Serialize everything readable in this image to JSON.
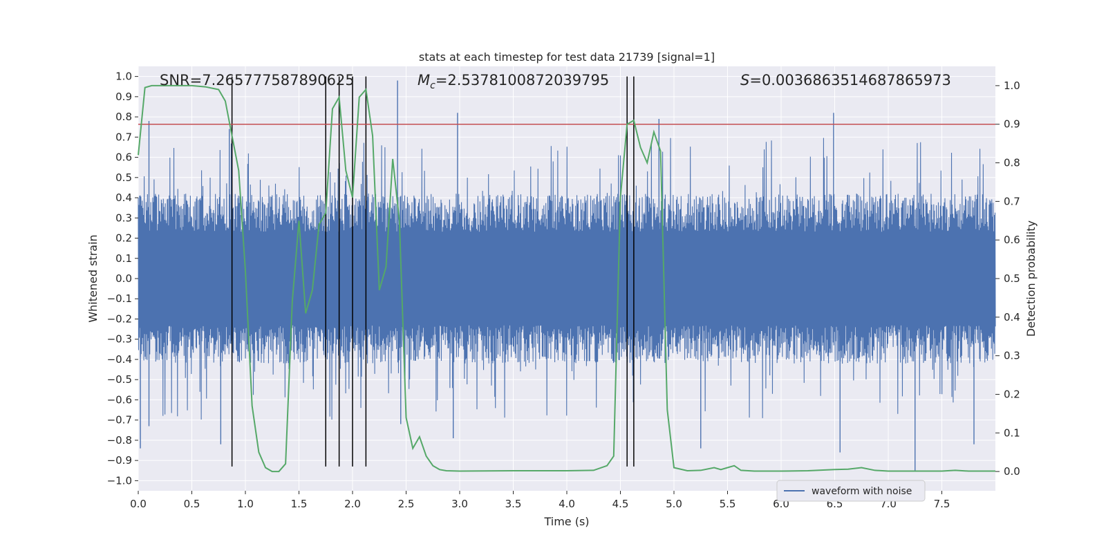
{
  "chart_data": {
    "type": "line",
    "title": "stats at each timestep for test data 21739 [signal=1]",
    "xlabel": "Time (s)",
    "ylabel": "Whitened strain",
    "ylabel_right": "Detection probability",
    "xlim": [
      0.0,
      8.0
    ],
    "ylim": [
      -1.05,
      1.05
    ],
    "ylim_right": [
      -0.05,
      1.05
    ],
    "xticks": [
      "0.0",
      "0.5",
      "1.0",
      "1.5",
      "2.0",
      "2.5",
      "3.0",
      "3.5",
      "4.0",
      "4.5",
      "5.0",
      "5.5",
      "6.0",
      "6.5",
      "7.0",
      "7.5"
    ],
    "yticks_left": [
      "−1.0",
      "−0.9",
      "−0.8",
      "−0.7",
      "−0.6",
      "−0.5",
      "−0.4",
      "−0.3",
      "−0.2",
      "−0.1",
      "0.0",
      "0.1",
      "0.2",
      "0.3",
      "0.4",
      "0.5",
      "0.6",
      "0.7",
      "0.8",
      "0.9",
      "1.0"
    ],
    "yticks_right": [
      "0.0",
      "0.1",
      "0.2",
      "0.3",
      "0.4",
      "0.5",
      "0.6",
      "0.7",
      "0.8",
      "0.9",
      "1.0"
    ],
    "annotations": {
      "snr": "SNR=7.265777587890625",
      "mc_symbol": "M",
      "mc_sub": "c",
      "mc_value": "=2.5378100872039795",
      "s_symbol": "S",
      "s_value": "=0.0036863514687865973"
    },
    "legend": {
      "label": "waveform with noise",
      "position": "bottom-right"
    },
    "threshold": {
      "value": 0.9,
      "axis": "right",
      "color": "#c44e52"
    },
    "vertical_markers": [
      0.875,
      1.75,
      1.875,
      2.0,
      2.125,
      4.5625,
      4.625
    ],
    "waveform": {
      "name": "waveform with noise",
      "color": "#4c72b0",
      "x_range": [
        0.0,
        8.0
      ],
      "band_upper_approx": 0.42,
      "band_lower_approx": -0.42,
      "peaks": [
        {
          "x": 0.02,
          "y": -0.84
        },
        {
          "x": 0.1,
          "y": 0.78
        },
        {
          "x": 0.1,
          "y": -0.73
        },
        {
          "x": 0.85,
          "y": 0.74
        },
        {
          "x": 0.77,
          "y": -0.82
        },
        {
          "x": 2.42,
          "y": 0.98
        },
        {
          "x": 2.45,
          "y": -0.72
        },
        {
          "x": 2.98,
          "y": 0.82
        },
        {
          "x": 2.94,
          "y": -0.79
        },
        {
          "x": 4.86,
          "y": 0.79
        },
        {
          "x": 6.49,
          "y": 0.82
        },
        {
          "x": 5.25,
          "y": -0.84
        },
        {
          "x": 6.55,
          "y": -0.86
        },
        {
          "x": 7.25,
          "y": -0.95
        },
        {
          "x": 7.8,
          "y": -0.82
        }
      ]
    },
    "probability": {
      "name": "detection probability",
      "color": "#55a868",
      "x": [
        0.0,
        0.0625,
        0.125,
        0.25,
        0.375,
        0.5,
        0.625,
        0.75,
        0.8125,
        0.875,
        0.9375,
        1.0,
        1.0625,
        1.125,
        1.1875,
        1.25,
        1.3125,
        1.375,
        1.4375,
        1.5,
        1.5625,
        1.625,
        1.6875,
        1.75,
        1.8125,
        1.875,
        1.9375,
        2.0,
        2.0625,
        2.125,
        2.1875,
        2.25,
        2.3125,
        2.375,
        2.4375,
        2.5,
        2.5625,
        2.625,
        2.6875,
        2.75,
        2.8125,
        2.875,
        3.0,
        3.5,
        4.0,
        4.25,
        4.375,
        4.4375,
        4.5,
        4.5625,
        4.625,
        4.6875,
        4.75,
        4.8125,
        4.875,
        4.9375,
        5.0,
        5.125,
        5.25,
        5.375,
        5.4375,
        5.5,
        5.5625,
        5.625,
        5.75,
        6.0,
        6.25,
        6.5,
        6.625,
        6.75,
        6.875,
        7.0,
        7.5,
        7.625,
        7.75,
        8.0
      ],
      "y": [
        0.82,
        0.995,
        1.0,
        1.0,
        1.0,
        1.0,
        0.997,
        0.99,
        0.96,
        0.87,
        0.78,
        0.52,
        0.17,
        0.05,
        0.01,
        0.0,
        0.0,
        0.02,
        0.44,
        0.65,
        0.41,
        0.47,
        0.64,
        0.67,
        0.94,
        0.97,
        0.78,
        0.71,
        0.97,
        0.99,
        0.87,
        0.47,
        0.53,
        0.81,
        0.65,
        0.14,
        0.06,
        0.09,
        0.04,
        0.015,
        0.005,
        0.002,
        0.001,
        0.002,
        0.002,
        0.003,
        0.015,
        0.04,
        0.71,
        0.9,
        0.91,
        0.84,
        0.8,
        0.88,
        0.83,
        0.16,
        0.01,
        0.002,
        0.003,
        0.01,
        0.005,
        0.01,
        0.015,
        0.003,
        0.001,
        0.001,
        0.002,
        0.005,
        0.006,
        0.01,
        0.003,
        0.001,
        0.001,
        0.003,
        0.001,
        0.001
      ]
    }
  }
}
